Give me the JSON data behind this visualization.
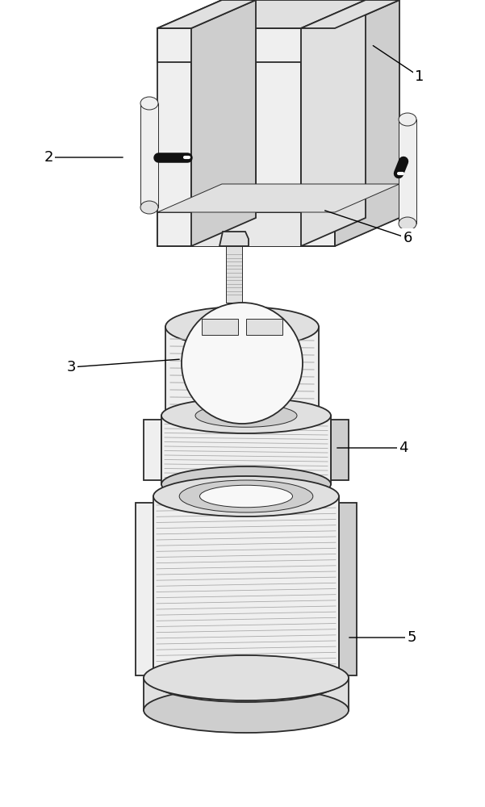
{
  "bg_color": "#ffffff",
  "lc": "#2a2a2a",
  "lw_main": 1.3,
  "lw_thin": 0.7,
  "face_white": "#f8f8f8",
  "face_light": "#efefef",
  "face_mid": "#e0e0e0",
  "face_dark": "#cecece",
  "face_darker": "#b8b8b8",
  "shadow": "#c0c0c0",
  "black": "#111111",
  "thread_color": "#aaaaaa",
  "label_fs": 13
}
